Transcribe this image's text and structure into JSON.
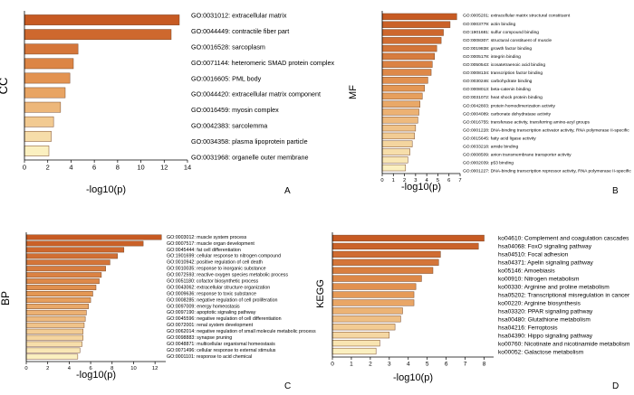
{
  "colors": {
    "dark": "#c75a22",
    "mid": "#e69a57",
    "light": "#fbf0c0",
    "border": "#7a4a2a"
  },
  "chart_data": [
    {
      "panel": "A",
      "type": "bar",
      "orientation": "horizontal",
      "ylabel": "CC",
      "xlabel": "-log10(p)",
      "xlim": [
        0,
        14
      ],
      "xticks": [
        0,
        2,
        4,
        6,
        8,
        10,
        12,
        14
      ],
      "categories": [
        "GO:0031012: extracellular matrix",
        "GO:0044449: contractile fiber part",
        "GO:0016528: sarcoplasm",
        "GO:0071144: heteromeric SMAD protein complex",
        "GO:0016605: PML body",
        "GO:0044420: extracellular matrix component",
        "GO:0016459: myosin complex",
        "GO:0042383: sarcolemma",
        "GO:0034358: plasma lipoprotein particle",
        "GO:0031968: organelle outer membrane"
      ],
      "values": [
        13.3,
        12.6,
        4.6,
        4.2,
        3.9,
        3.5,
        3.1,
        2.5,
        2.3,
        2.1
      ]
    },
    {
      "panel": "B",
      "type": "bar",
      "orientation": "horizontal",
      "ylabel": "MF",
      "xlabel": "-log10(p)",
      "xlim": [
        0,
        7
      ],
      "xticks": [
        0,
        1,
        2,
        3,
        4,
        5,
        6,
        7
      ],
      "categories": [
        "GO:0005201: extracellular matrix structural constituent",
        "GO:0003779: actin binding",
        "GO:1901681: sulfur compound binding",
        "GO:0008307: structural constituent of muscle",
        "GO:0019838: growth factor binding",
        "GO:0005178: integrin binding",
        "GO:0050543: icosatetraenoic acid binding",
        "GO:0008134: transcription factor binding",
        "GO:0030246: carbohydrate binding",
        "GO:0008013: beta-catenin binding",
        "GO:0031072: heat shock protein binding",
        "GO:0042803: protein homodimerization activity",
        "GO:0004089: carbonate dehydratase activity",
        "GO:0016755: transferase activity, transferring amino-acyl groups",
        "GO:0001228: DNA-binding transcription activator activity, RNA polymerase II-specific",
        "GO:0015645: fatty acid ligase activity",
        "GO:0033218: amide binding",
        "GO:0008509: anion transmembrane transporter activity",
        "GO:0002039: p53 binding",
        "GO:0001227: DNA-binding transcription repressor activity, RNA polymerase II-specific"
      ],
      "values": [
        6.7,
        6.1,
        5.5,
        5.3,
        4.9,
        4.7,
        4.5,
        4.4,
        4.1,
        3.8,
        3.6,
        3.4,
        3.3,
        3.2,
        3.0,
        2.9,
        2.7,
        2.5,
        2.3,
        2.1
      ]
    },
    {
      "panel": "C",
      "type": "bar",
      "orientation": "horizontal",
      "ylabel": "BP",
      "xlabel": "-log10(p)",
      "xlim": [
        0,
        13
      ],
      "xticks": [
        0,
        2,
        4,
        6,
        8,
        10,
        12
      ],
      "categories": [
        "GO:0003012: muscle system process",
        "GO:0007517: muscle organ development",
        "GO:0045444: fat cell differentiation",
        "GO:1901699: cellular response to nitrogen compound",
        "GO:0010942: positive regulation of cell death",
        "GO:0010035: response to inorganic substance",
        "GO:0072593: reactive oxygen species metabolic process",
        "GO:0051180: cofactor biosynthetic process",
        "GO:0043062: extracellular structure organization",
        "GO:0009636: response to toxic substance",
        "GO:0008285: negative regulation of cell proliferation",
        "GO:0097009: energy homeostasis",
        "GO:0097190: apoptotic signaling pathway",
        "GO:0045596: negative regulation of cell differentiation",
        "GO:0072001: renal system development",
        "GO:0062014: negative regulation of small molecule metabolic process",
        "GO:0098883: synapse pruning",
        "GO:0048871: multicellular organismal homeostasis",
        "GO:0071496: cellular response to external stimulus",
        "GO:0001101: response to acid chemical"
      ],
      "values": [
        12.6,
        10.9,
        9.1,
        8.5,
        7.8,
        7.4,
        7.0,
        6.8,
        6.5,
        6.2,
        6.0,
        5.8,
        5.6,
        5.5,
        5.4,
        5.3,
        5.3,
        5.2,
        5.0,
        4.8
      ]
    },
    {
      "panel": "D",
      "type": "bar",
      "orientation": "horizontal",
      "ylabel": "KEGG",
      "xlabel": "-log10(p)",
      "xlim": [
        0,
        8.5
      ],
      "xticks": [
        0,
        1,
        2,
        3,
        4,
        5,
        6,
        7,
        8
      ],
      "categories": [
        "ko04610: Complement and coagulation cascades",
        "hsa04068: FoxO signaling pathway",
        "hsa04510: Focal adhesion",
        "hsa04371: Apelin signaling pathway",
        "ko05146: Amoebiasis",
        "ko00910: Nitrogen metabolism",
        "ko00330: Arginine and proline metabolism",
        "hsa05202: Transcriptional misregulation in cancer",
        "ko00220: Arginine biosynthesis",
        "hsa03320: PPAR signaling pathway",
        "hsa00480: Glutathione metabolism",
        "hsa04216: Ferroptosis",
        "hsa04390: Hippo signaling pathway",
        "ko00760: Nicotinate and nicotinamide metabolism",
        "ko00052: Galactose metabolism"
      ],
      "values": [
        8.0,
        7.7,
        5.7,
        5.6,
        5.3,
        4.7,
        4.4,
        4.3,
        4.3,
        3.7,
        3.6,
        3.3,
        3.0,
        2.5,
        2.3
      ]
    }
  ]
}
